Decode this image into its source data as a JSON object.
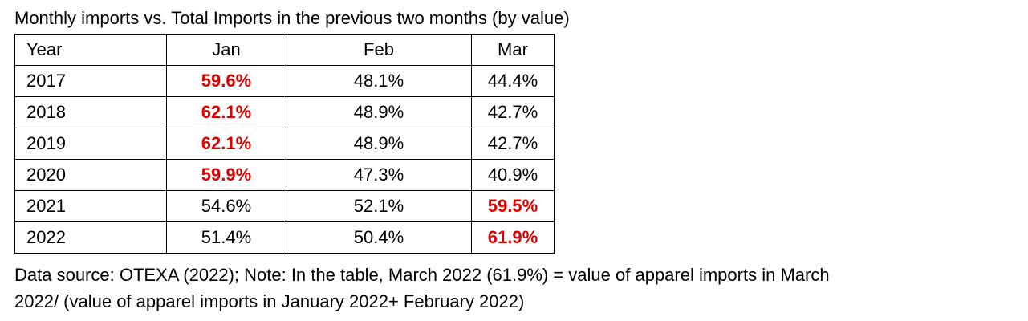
{
  "title": "Monthly imports vs. Total Imports in the previous two months (by value)",
  "table": {
    "headers": [
      "Year",
      "Jan",
      "Feb",
      "Mar"
    ],
    "rows": [
      {
        "year": "2017",
        "jan": "59.6%",
        "feb": "48.1%",
        "mar": "44.4%",
        "highlight": "jan"
      },
      {
        "year": "2018",
        "jan": "62.1%",
        "feb": "48.9%",
        "mar": "42.7%",
        "highlight": "jan"
      },
      {
        "year": "2019",
        "jan": "62.1%",
        "feb": "48.9%",
        "mar": "42.7%",
        "highlight": "jan"
      },
      {
        "year": "2020",
        "jan": "59.9%",
        "feb": "47.3%",
        "mar": "40.9%",
        "highlight": "jan"
      },
      {
        "year": "2021",
        "jan": "54.6%",
        "feb": "52.1%",
        "mar": "59.5%",
        "highlight": "mar"
      },
      {
        "year": "2022",
        "jan": "51.4%",
        "feb": "50.4%",
        "mar": "61.9%",
        "highlight": "mar"
      }
    ],
    "highlight_color": "#e00000"
  },
  "note": {
    "line1": "Data source: OTEXA (2022); Note: In the table, March 2022 (61.9%) = value of apparel imports in March",
    "line2": "2022/ (value of apparel imports in January 2022+ February 2022)"
  }
}
